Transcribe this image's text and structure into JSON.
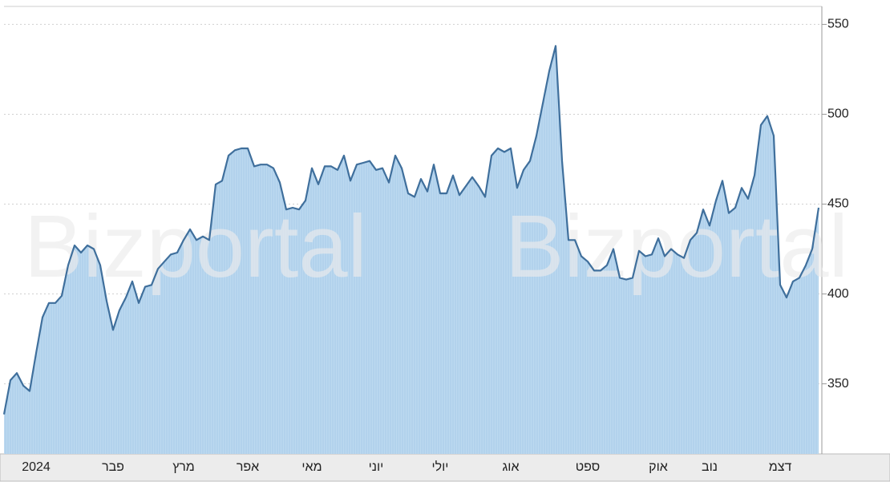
{
  "chart_data": {
    "type": "area",
    "watermark": "Bizportal",
    "categories": [
      null,
      null,
      null,
      null,
      null,
      "2024",
      null,
      null,
      null,
      null,
      null,
      null,
      null,
      null,
      null,
      null,
      null,
      "פבר",
      null,
      null,
      null,
      null,
      null,
      null,
      null,
      null,
      null,
      null,
      "מרץ",
      null,
      null,
      null,
      null,
      null,
      null,
      null,
      null,
      null,
      "אפר",
      null,
      null,
      null,
      null,
      null,
      null,
      null,
      null,
      null,
      "מאי",
      null,
      null,
      null,
      null,
      null,
      null,
      null,
      null,
      null,
      "יוני",
      null,
      null,
      null,
      null,
      null,
      null,
      null,
      null,
      null,
      "יולי",
      null,
      null,
      null,
      null,
      null,
      null,
      null,
      null,
      null,
      null,
      "אוג",
      null,
      null,
      null,
      null,
      null,
      null,
      null,
      null,
      null,
      null,
      null,
      "ספט",
      null,
      null,
      null,
      null,
      null,
      null,
      null,
      null,
      null,
      null,
      "אוק",
      null,
      null,
      null,
      null,
      null,
      null,
      null,
      "נוב",
      null,
      null,
      null,
      null,
      null,
      null,
      null,
      null,
      null,
      null,
      "דצמ",
      null,
      null,
      null,
      null,
      null,
      null
    ],
    "values": [
      333,
      352,
      356,
      349,
      346,
      367,
      387,
      395,
      395,
      399,
      416,
      427,
      423,
      427,
      425,
      416,
      396,
      380,
      391,
      398,
      407,
      395,
      404,
      405,
      414,
      418,
      422,
      423,
      430,
      436,
      430,
      432,
      430,
      461,
      463,
      477,
      480,
      481,
      481,
      471,
      472,
      472,
      470,
      462,
      447,
      448,
      447,
      452,
      470,
      461,
      471,
      471,
      469,
      477,
      463,
      472,
      473,
      474,
      469,
      470,
      462,
      477,
      470,
      456,
      454,
      464,
      457,
      472,
      456,
      456,
      466,
      455,
      460,
      465,
      460,
      454,
      477,
      481,
      479,
      481,
      459,
      469,
      474,
      488,
      506,
      524,
      538,
      474,
      430,
      430,
      421,
      418,
      413,
      413,
      416,
      425,
      409,
      408,
      409,
      424,
      421,
      422,
      431,
      421,
      425,
      422,
      420,
      430,
      434,
      447,
      438,
      452,
      463,
      445,
      448,
      459,
      453,
      466,
      494,
      499,
      488,
      405,
      398,
      407,
      409,
      416,
      425,
      448
    ],
    "color": "#3f6f9c",
    "fill": "#b9d7ef",
    "ylim": [
      311,
      560
    ],
    "yticks": [
      350,
      400,
      450,
      500,
      550
    ],
    "grid": true,
    "y_axis_side": "right"
  }
}
